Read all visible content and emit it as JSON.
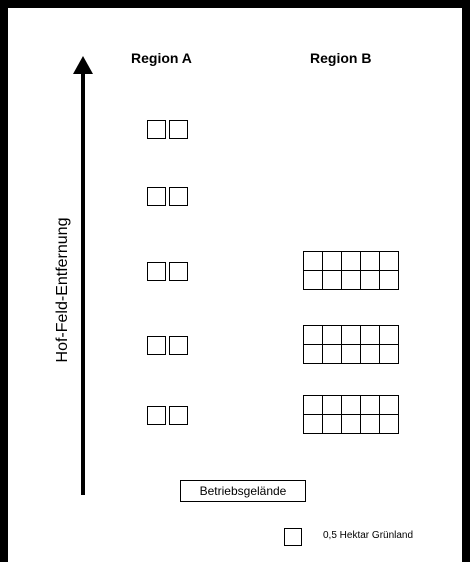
{
  "diagram": {
    "region_a_label": "Region A",
    "region_b_label": "Region B",
    "axis_label": "Hof-Feld-Entfernung",
    "base_label": "Betriebsgelände",
    "legend_text": "0,5 Hektar Grünland"
  },
  "rows": [
    {
      "region_a_cells": 2,
      "region_b_cells": 0
    },
    {
      "region_a_cells": 2,
      "region_b_cells": 0
    },
    {
      "region_a_cells": 2,
      "region_b_cells": 10
    },
    {
      "region_a_cells": 2,
      "region_b_cells": 10
    },
    {
      "region_a_cells": 2,
      "region_b_cells": 10
    }
  ]
}
